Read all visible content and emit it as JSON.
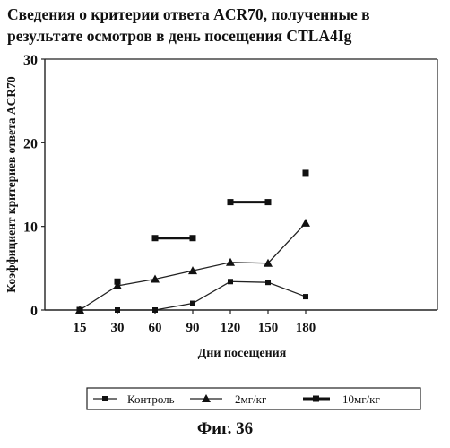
{
  "title_lines": [
    "Сведения о критерии ответа ACR70, полученные в",
    "результате осмотров в день посещения CTLA4Ig"
  ],
  "caption": "Фиг. 36",
  "chart_data": {
    "type": "line",
    "title": "Сведения о критерии ответа ACR70, полученные в результате осмотров в день посещения CTLA4Ig",
    "xlabel": "Дни посещения",
    "ylabel": "Коэффициент критериев ответа ACR70",
    "categories": [
      "15",
      "30",
      "60",
      "90",
      "120",
      "150",
      "180"
    ],
    "ylim": [
      0,
      30
    ],
    "yticks": [
      "0",
      "10",
      "20",
      "30"
    ],
    "grid": false,
    "legend_position": "bottom",
    "series": [
      {
        "name": "Контроль",
        "marker": "square",
        "values": [
          0,
          0,
          0,
          0.8,
          3.4,
          3.3,
          1.6
        ]
      },
      {
        "name": "2мг/кг",
        "marker": "triangle",
        "values": [
          0,
          2.9,
          3.7,
          4.7,
          5.7,
          5.6,
          10.4
        ]
      },
      {
        "name": "10мг/кг",
        "marker": "square",
        "values": [
          0,
          3.4,
          8.6,
          8.6,
          12.9,
          12.9,
          16.4
        ]
      }
    ]
  }
}
